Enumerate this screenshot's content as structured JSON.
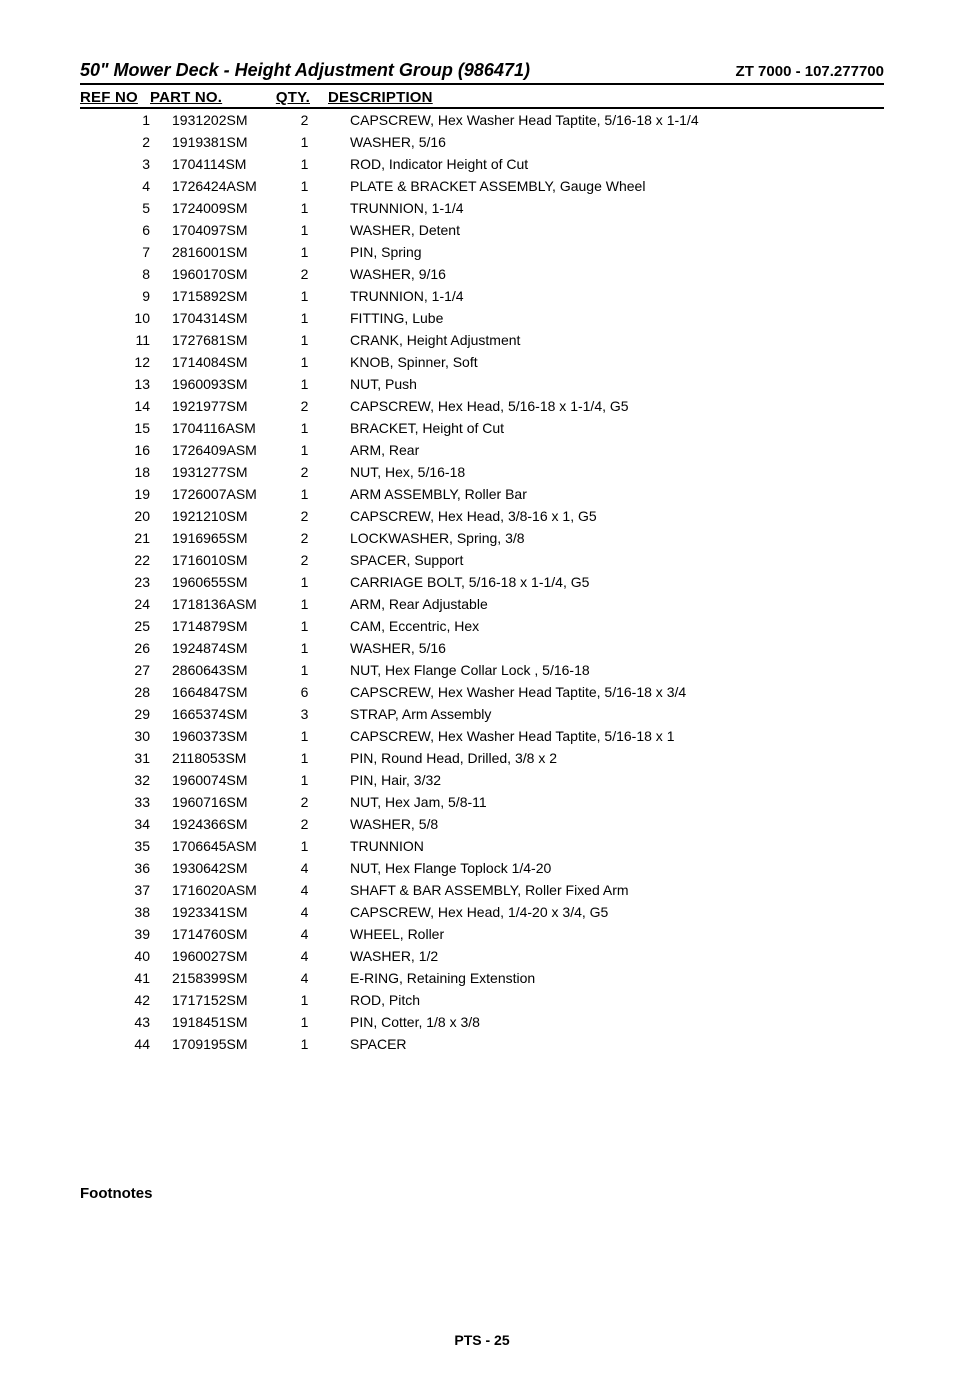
{
  "header": {
    "title_left": "50\" Mower Deck - Height Adjustment Group (986471)",
    "title_right": "ZT 7000 - 107.277700"
  },
  "table": {
    "columns": {
      "ref": "REF NO",
      "part": "PART NO.",
      "qty": "QTY.",
      "desc": "DESCRIPTION"
    },
    "rows": [
      {
        "ref": "1",
        "part": "1931202SM",
        "qty": "2",
        "desc": "CAPSCREW, Hex Washer Head Taptite, 5/16-18 x 1-1/4"
      },
      {
        "ref": "2",
        "part": "1919381SM",
        "qty": "1",
        "desc": "WASHER, 5/16"
      },
      {
        "ref": "3",
        "part": "1704114SM",
        "qty": "1",
        "desc": "ROD, Indicator Height of Cut"
      },
      {
        "ref": "4",
        "part": "1726424ASM",
        "qty": "1",
        "desc": "PLATE & BRACKET ASSEMBLY, Gauge Wheel"
      },
      {
        "ref": "5",
        "part": "1724009SM",
        "qty": "1",
        "desc": "TRUNNION, 1-1/4"
      },
      {
        "ref": "6",
        "part": "1704097SM",
        "qty": "1",
        "desc": "WASHER, Detent"
      },
      {
        "ref": "7",
        "part": "2816001SM",
        "qty": "1",
        "desc": "PIN, Spring"
      },
      {
        "ref": "8",
        "part": "1960170SM",
        "qty": "2",
        "desc": "WASHER, 9/16"
      },
      {
        "ref": "9",
        "part": "1715892SM",
        "qty": "1",
        "desc": "TRUNNION, 1-1/4"
      },
      {
        "ref": "10",
        "part": "1704314SM",
        "qty": "1",
        "desc": "FITTING, Lube"
      },
      {
        "ref": "11",
        "part": "1727681SM",
        "qty": "1",
        "desc": "CRANK, Height Adjustment"
      },
      {
        "ref": "12",
        "part": "1714084SM",
        "qty": "1",
        "desc": "KNOB, Spinner, Soft"
      },
      {
        "ref": "13",
        "part": "1960093SM",
        "qty": "1",
        "desc": "NUT, Push"
      },
      {
        "ref": "14",
        "part": "1921977SM",
        "qty": "2",
        "desc": "CAPSCREW, Hex Head, 5/16-18 x 1-1/4, G5"
      },
      {
        "ref": "15",
        "part": "1704116ASM",
        "qty": "1",
        "desc": "BRACKET, Height of Cut"
      },
      {
        "ref": "16",
        "part": "1726409ASM",
        "qty": "1",
        "desc": "ARM, Rear"
      },
      {
        "ref": "18",
        "part": "1931277SM",
        "qty": "2",
        "desc": "NUT, Hex, 5/16-18"
      },
      {
        "ref": "19",
        "part": "1726007ASM",
        "qty": "1",
        "desc": "ARM ASSEMBLY, Roller Bar"
      },
      {
        "ref": "20",
        "part": "1921210SM",
        "qty": "2",
        "desc": "CAPSCREW, Hex Head, 3/8-16 x 1, G5"
      },
      {
        "ref": "21",
        "part": "1916965SM",
        "qty": "2",
        "desc": "LOCKWASHER, Spring, 3/8"
      },
      {
        "ref": "22",
        "part": "1716010SM",
        "qty": "2",
        "desc": "SPACER, Support"
      },
      {
        "ref": "23",
        "part": "1960655SM",
        "qty": "1",
        "desc": "CARRIAGE BOLT, 5/16-18 x 1-1/4, G5"
      },
      {
        "ref": "24",
        "part": "1718136ASM",
        "qty": "1",
        "desc": "ARM, Rear Adjustable"
      },
      {
        "ref": "25",
        "part": "1714879SM",
        "qty": "1",
        "desc": "CAM, Eccentric, Hex"
      },
      {
        "ref": "26",
        "part": "1924874SM",
        "qty": "1",
        "desc": "WASHER, 5/16"
      },
      {
        "ref": "27",
        "part": "2860643SM",
        "qty": "1",
        "desc": "NUT, Hex Flange Collar Lock , 5/16-18"
      },
      {
        "ref": "28",
        "part": "1664847SM",
        "qty": "6",
        "desc": "CAPSCREW, Hex Washer Head Taptite, 5/16-18 x 3/4"
      },
      {
        "ref": "29",
        "part": "1665374SM",
        "qty": "3",
        "desc": "STRAP, Arm Assembly"
      },
      {
        "ref": "30",
        "part": "1960373SM",
        "qty": "1",
        "desc": "CAPSCREW, Hex Washer Head Taptite, 5/16-18 x 1"
      },
      {
        "ref": "31",
        "part": "2118053SM",
        "qty": "1",
        "desc": "PIN, Round Head, Drilled, 3/8 x 2"
      },
      {
        "ref": "32",
        "part": "1960074SM",
        "qty": "1",
        "desc": "PIN, Hair, 3/32"
      },
      {
        "ref": "33",
        "part": "1960716SM",
        "qty": "2",
        "desc": "NUT, Hex Jam, 5/8-11"
      },
      {
        "ref": "34",
        "part": "1924366SM",
        "qty": "2",
        "desc": "WASHER, 5/8"
      },
      {
        "ref": "35",
        "part": "1706645ASM",
        "qty": "1",
        "desc": "TRUNNION"
      },
      {
        "ref": "36",
        "part": "1930642SM",
        "qty": "4",
        "desc": "NUT, Hex Flange Toplock 1/4-20"
      },
      {
        "ref": "37",
        "part": "1716020ASM",
        "qty": "4",
        "desc": "SHAFT & BAR ASSEMBLY, Roller Fixed Arm"
      },
      {
        "ref": "38",
        "part": "1923341SM",
        "qty": "4",
        "desc": "CAPSCREW, Hex Head, 1/4-20 x 3/4, G5"
      },
      {
        "ref": "39",
        "part": "1714760SM",
        "qty": "4",
        "desc": "WHEEL, Roller"
      },
      {
        "ref": "40",
        "part": "1960027SM",
        "qty": "4",
        "desc": "WASHER, 1/2"
      },
      {
        "ref": "41",
        "part": "2158399SM",
        "qty": "4",
        "desc": "E-RING, Retaining Extenstion"
      },
      {
        "ref": "42",
        "part": "1717152SM",
        "qty": "1",
        "desc": "ROD, Pitch"
      },
      {
        "ref": "43",
        "part": "1918451SM",
        "qty": "1",
        "desc": "PIN, Cotter, 1/8 x 3/8"
      },
      {
        "ref": "44",
        "part": "1709195SM",
        "qty": "1",
        "desc": "SPACER"
      }
    ]
  },
  "footnotes_label": "Footnotes",
  "footer": "PTS - 25"
}
